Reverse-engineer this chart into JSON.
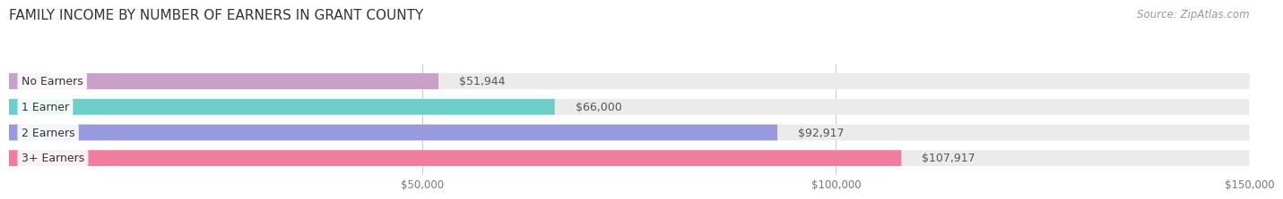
{
  "title": "FAMILY INCOME BY NUMBER OF EARNERS IN GRANT COUNTY",
  "source": "Source: ZipAtlas.com",
  "categories": [
    "No Earners",
    "1 Earner",
    "2 Earners",
    "3+ Earners"
  ],
  "values": [
    51944,
    66000,
    92917,
    107917
  ],
  "labels": [
    "$51,944",
    "$66,000",
    "$92,917",
    "$107,917"
  ],
  "bar_colors": [
    "#c9a0c8",
    "#6ecfca",
    "#9999dd",
    "#f07ca0"
  ],
  "bar_bg_color": "#ebebeb",
  "background_color": "#ffffff",
  "xmin": 0,
  "xmax": 150000,
  "xticks": [
    50000,
    100000,
    150000
  ],
  "xtick_labels": [
    "$50,000",
    "$100,000",
    "$150,000"
  ],
  "title_fontsize": 11,
  "label_fontsize": 9,
  "tick_fontsize": 8.5,
  "source_fontsize": 8.5,
  "bar_height": 0.62
}
